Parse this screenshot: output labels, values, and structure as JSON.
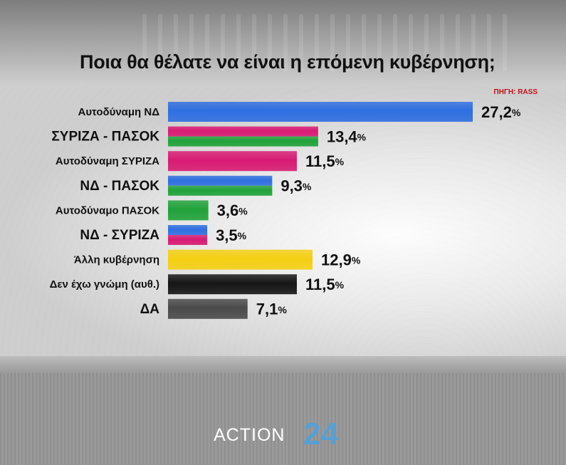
{
  "title": "Ποια θα θέλατε να είναι η επόμενη κυβέρνηση;",
  "source": "ΠΗΓΗ: RASS",
  "brand": {
    "name": "ACTION",
    "number": "24"
  },
  "chart_data": {
    "type": "bar",
    "orientation": "horizontal",
    "title": "Ποια θα θέλατε να είναι η επόμενη κυβέρνηση;",
    "categories": [
      "Αυτοδύναμη ΝΔ",
      "ΣΥΡΙΖΑ - ΠΑΣΟΚ",
      "Αυτοδύναμη ΣΥΡΙΖΑ",
      "ΝΔ - ΠΑΣΟΚ",
      "Αυτοδύναμο ΠΑΣΟΚ",
      "ΝΔ - ΣΥΡΙΖΑ",
      "Άλλη κυβέρνηση",
      "Δεν έχω γνώμη (αυθ.)",
      "ΔΑ"
    ],
    "values": [
      27.2,
      13.4,
      11.5,
      9.3,
      3.6,
      3.5,
      12.9,
      11.5,
      7.1
    ],
    "value_labels": [
      "27,2",
      "13,4",
      "11,5",
      "9,3",
      "3,6",
      "3,5",
      "12,9",
      "11,5",
      "7,1"
    ],
    "unit": "%",
    "xlim": [
      0,
      27.2
    ],
    "label_sizes": [
      "normal",
      "large",
      "normal",
      "large",
      "normal",
      "large",
      "normal",
      "normal",
      "large"
    ],
    "bar_colors": [
      [
        "#2f6fe0"
      ],
      [
        "#d81b73",
        "#21a23a"
      ],
      [
        "#d81b73"
      ],
      [
        "#2f6fe0",
        "#21a23a"
      ],
      [
        "#21a23a"
      ],
      [
        "#2f6fe0",
        "#d81b73"
      ],
      [
        "#f4cf12"
      ],
      [
        "#151515"
      ],
      [
        "#4a4a4a"
      ]
    ]
  }
}
